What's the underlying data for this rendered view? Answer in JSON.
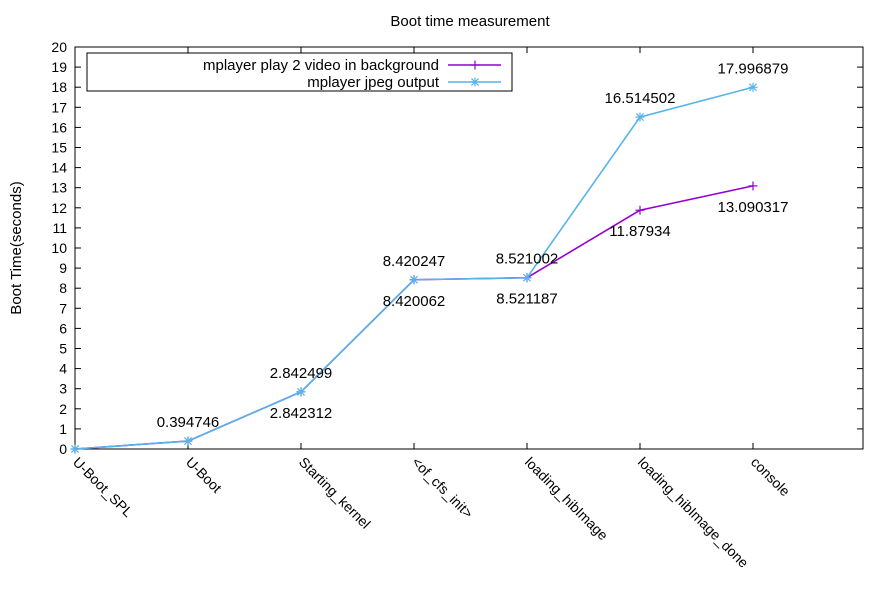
{
  "chart_data": {
    "type": "line",
    "title": "Boot time measurement",
    "xlabel": "",
    "ylabel": "Boot Time(seconds)",
    "ylim": [
      0,
      20
    ],
    "yticks": [
      0,
      1,
      2,
      3,
      4,
      5,
      6,
      7,
      8,
      9,
      10,
      11,
      12,
      13,
      14,
      15,
      16,
      17,
      18,
      19,
      20
    ],
    "categories": [
      "U-Boot_SPL",
      "U-Boot",
      "Starting_kernel",
      "<of_cfs_init>",
      "loading_hibImage",
      "loading_hibImage_done",
      "console"
    ],
    "grid": false,
    "legend_position": "top-left",
    "series": [
      {
        "name": "mplayer play 2 video in background",
        "color": "#9400d3",
        "marker": "+",
        "values": [
          0,
          0.394746,
          2.842312,
          8.420062,
          8.521187,
          11.87934,
          13.090317
        ]
      },
      {
        "name": "mplayer jpeg output",
        "color": "#56b4e9",
        "marker": "*",
        "values": [
          0,
          0.394746,
          2.842499,
          8.420247,
          8.521002,
          16.514502,
          17.996879
        ]
      }
    ],
    "point_labels": [
      {
        "index": 1,
        "text": "0.394746",
        "pos": "above"
      },
      {
        "index": 2,
        "text": "2.842499",
        "pos": "above"
      },
      {
        "index": 2,
        "text": "2.842312",
        "pos": "below"
      },
      {
        "index": 3,
        "text": "8.420247",
        "pos": "above"
      },
      {
        "index": 3,
        "text": "8.420062",
        "pos": "below"
      },
      {
        "index": 4,
        "text": "8.521002",
        "pos": "above"
      },
      {
        "index": 4,
        "text": "8.521187",
        "pos": "below"
      },
      {
        "index": 5,
        "text": "16.514502",
        "pos": "above"
      },
      {
        "index": 5,
        "text": "11.87934",
        "pos": "below"
      },
      {
        "index": 6,
        "text": "17.996879",
        "pos": "above"
      },
      {
        "index": 6,
        "text": "13.090317",
        "pos": "below"
      }
    ]
  }
}
